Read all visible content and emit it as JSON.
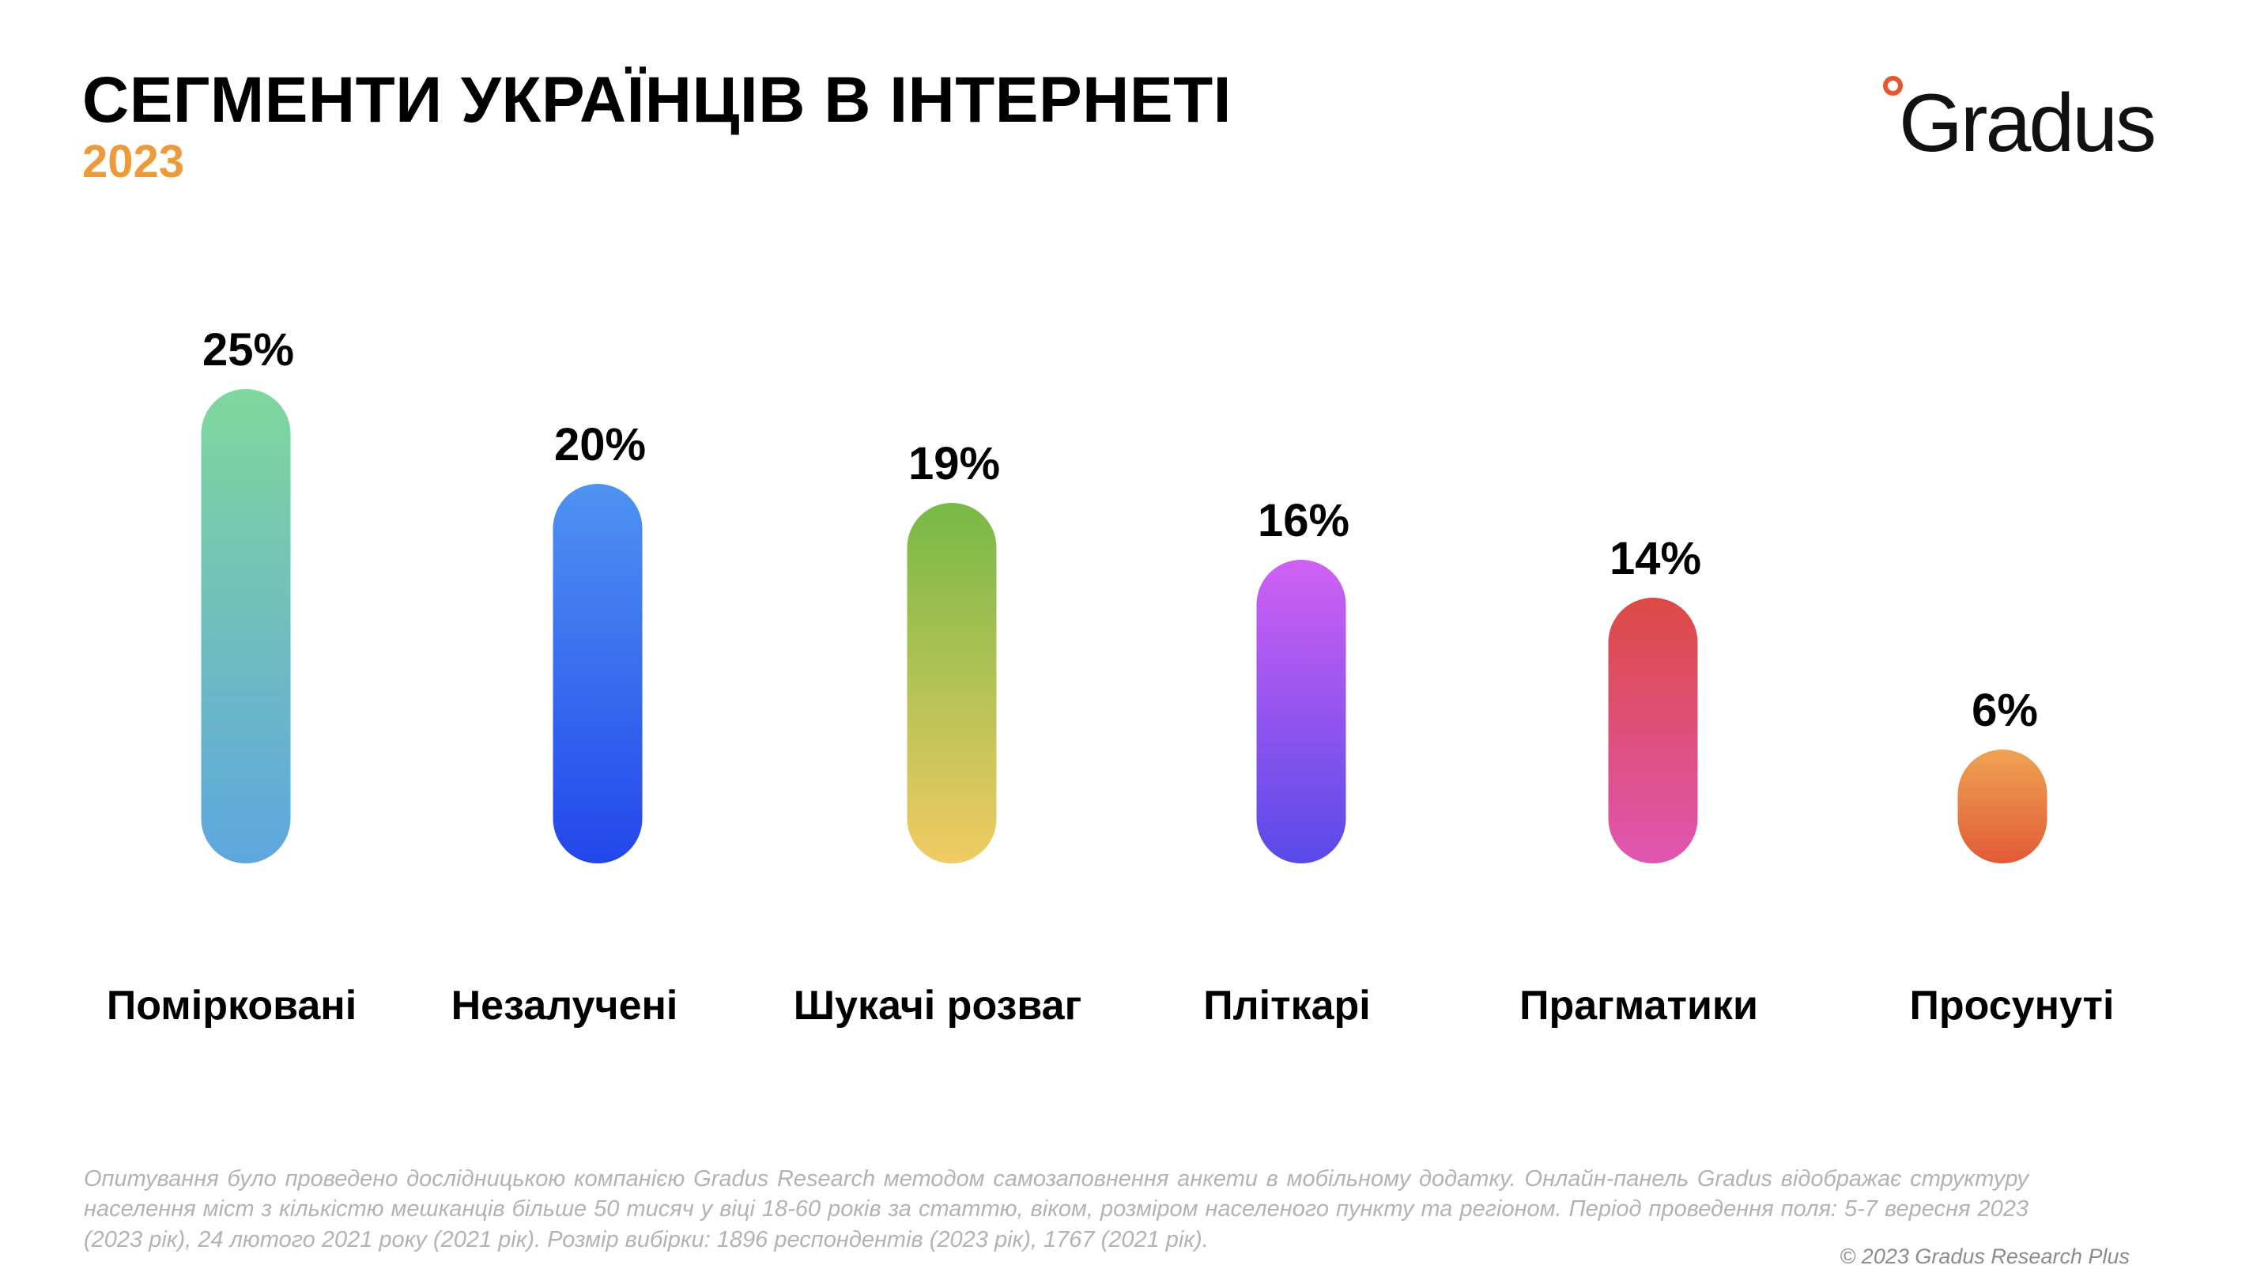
{
  "header": {
    "title": "СЕГМЕНТИ УКРАЇНЦІВ В ІНТЕРНЕТІ",
    "year": "2023",
    "year_color": "#ee9a3a"
  },
  "logo": {
    "text": "Gradus",
    "accent_color": "#e8562f"
  },
  "chart_data": {
    "type": "bar",
    "title": "СЕГМЕНТИ УКРАЇНЦІВ В ІНТЕРНЕТІ",
    "subtitle": "2023",
    "xlabel": "",
    "ylabel": "",
    "ylim": [
      0,
      25
    ],
    "grid": false,
    "categories": [
      "Помірковані",
      "Незалучені",
      "Шукачі розваг",
      "Пліткарі",
      "Прагматики",
      "Просунуті"
    ],
    "values": [
      25,
      20,
      19,
      16,
      14,
      6
    ],
    "value_labels": [
      "25%",
      "20%",
      "19%",
      "16%",
      "14%",
      "6%"
    ],
    "gradients": [
      [
        "#7fd89c",
        "#5ea6df"
      ],
      [
        "#4f93f2",
        "#2346ec"
      ],
      [
        "#77b947",
        "#f0cb63"
      ],
      [
        "#d160f4",
        "#574ae9"
      ],
      [
        "#dd4a43",
        "#df56b2"
      ],
      [
        "#efa353",
        "#e25a37"
      ]
    ]
  },
  "footer": {
    "note": "Опитування було проведено дослідницькою компанією Gradus Research методом самозаповнення анкети в мобільному додатку. Онлайн-панель Gradus відображає структуру населення міст з кількістю мешканців більше 50 тисяч у віці 18-60 років за статтю, віком, розміром населеного пункту та регіоном. Період проведення поля: 5-7 вересня 2023 (2023 рік), 24 лютого 2021 року (2021 рік). Розмір вибірки: 1896 респондентів (2023 рік), 1767 (2021 рік).",
    "copyright": "© 2023 Gradus Research Plus"
  }
}
